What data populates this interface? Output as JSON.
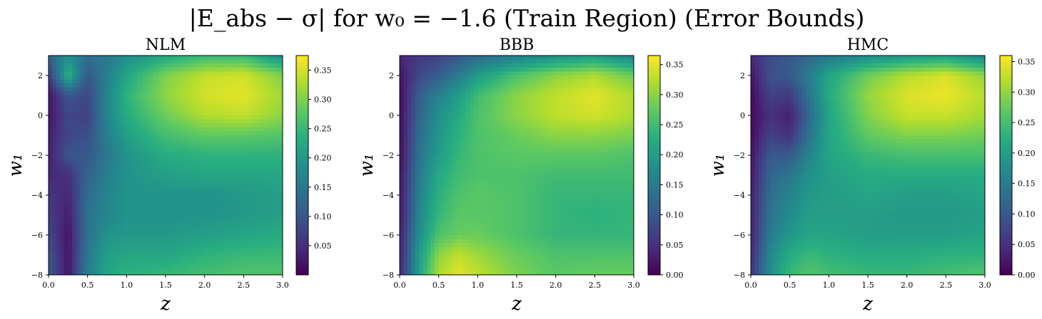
{
  "figure": {
    "suptitle": "|E_abs − σ| for w₀ = −1.6 (Train Region) (Error Bounds)"
  },
  "colormap": [
    "#440154",
    "#472d7b",
    "#3b528b",
    "#2c728e",
    "#21918c",
    "#28ae80",
    "#5ec962",
    "#addc30",
    "#fde725"
  ],
  "chart_data": [
    {
      "type": "heatmap",
      "title": "NLM",
      "xlabel": "z",
      "ylabel": "w₁",
      "xlim": [
        0.0,
        3.0
      ],
      "ylim": [
        -8,
        3
      ],
      "xticks": [
        "0.0",
        "0.5",
        "1.0",
        "1.5",
        "2.0",
        "2.5",
        "3.0"
      ],
      "yticks": [
        "2",
        "0",
        "−2",
        "−4",
        "−6",
        "−8"
      ],
      "colorbar": {
        "range": [
          0.0,
          0.375
        ],
        "ticks": [
          "0.05",
          "0.10",
          "0.15",
          "0.20",
          "0.25",
          "0.30",
          "0.35"
        ]
      },
      "x": [
        0.0,
        0.25,
        0.5,
        0.75,
        1.0,
        1.5,
        2.0,
        2.5,
        3.0
      ],
      "y": [
        3,
        2,
        1,
        0,
        -1,
        -2,
        -3,
        -4,
        -5,
        -6,
        -7,
        -8
      ],
      "values": [
        [
          0.12,
          0.18,
          0.14,
          0.15,
          0.18,
          0.22,
          0.25,
          0.25,
          0.18
        ],
        [
          0.06,
          0.24,
          0.1,
          0.16,
          0.22,
          0.3,
          0.34,
          0.35,
          0.3
        ],
        [
          0.02,
          0.1,
          0.08,
          0.17,
          0.24,
          0.31,
          0.35,
          0.36,
          0.32
        ],
        [
          0.02,
          0.08,
          0.07,
          0.17,
          0.23,
          0.29,
          0.33,
          0.34,
          0.31
        ],
        [
          0.03,
          0.08,
          0.09,
          0.16,
          0.21,
          0.26,
          0.28,
          0.28,
          0.27
        ],
        [
          0.03,
          0.1,
          0.1,
          0.15,
          0.19,
          0.23,
          0.24,
          0.24,
          0.24
        ],
        [
          0.04,
          0.05,
          0.12,
          0.16,
          0.19,
          0.21,
          0.22,
          0.22,
          0.22
        ],
        [
          0.06,
          0.04,
          0.13,
          0.17,
          0.19,
          0.19,
          0.19,
          0.2,
          0.21
        ],
        [
          0.07,
          0.03,
          0.14,
          0.17,
          0.19,
          0.19,
          0.19,
          0.2,
          0.21
        ],
        [
          0.08,
          0.02,
          0.14,
          0.19,
          0.2,
          0.2,
          0.21,
          0.22,
          0.23
        ],
        [
          0.1,
          0.02,
          0.15,
          0.21,
          0.22,
          0.22,
          0.24,
          0.25,
          0.25
        ],
        [
          0.11,
          0.02,
          0.16,
          0.22,
          0.24,
          0.25,
          0.26,
          0.27,
          0.27
        ]
      ]
    },
    {
      "type": "heatmap",
      "title": "BBB",
      "xlabel": "z",
      "ylabel": "w₁",
      "xlim": [
        0.0,
        3.0
      ],
      "ylim": [
        -8,
        3
      ],
      "xticks": [
        "0.0",
        "0.5",
        "1.0",
        "1.5",
        "2.0",
        "2.5",
        "3.0"
      ],
      "yticks": [
        "2",
        "0",
        "−2",
        "−4",
        "−6",
        "−8"
      ],
      "colorbar": {
        "range": [
          0.0,
          0.365
        ],
        "ticks": [
          "0.00",
          "0.05",
          "0.10",
          "0.15",
          "0.20",
          "0.25",
          "0.30",
          "0.35"
        ]
      },
      "x": [
        0.0,
        0.25,
        0.5,
        0.75,
        1.0,
        1.5,
        2.0,
        2.5,
        3.0
      ],
      "y": [
        3,
        2,
        1,
        0,
        -1,
        -2,
        -3,
        -4,
        -5,
        -6,
        -7,
        -8
      ],
      "values": [
        [
          0.04,
          0.06,
          0.07,
          0.1,
          0.12,
          0.15,
          0.18,
          0.2,
          0.16
        ],
        [
          0.02,
          0.08,
          0.11,
          0.15,
          0.2,
          0.26,
          0.3,
          0.32,
          0.28
        ],
        [
          0.01,
          0.11,
          0.16,
          0.2,
          0.25,
          0.3,
          0.33,
          0.35,
          0.32
        ],
        [
          0.01,
          0.12,
          0.18,
          0.22,
          0.26,
          0.3,
          0.33,
          0.34,
          0.32
        ],
        [
          0.01,
          0.13,
          0.19,
          0.23,
          0.26,
          0.28,
          0.3,
          0.3,
          0.29
        ],
        [
          0.01,
          0.14,
          0.2,
          0.24,
          0.26,
          0.27,
          0.27,
          0.27,
          0.26
        ],
        [
          0.02,
          0.15,
          0.22,
          0.25,
          0.26,
          0.26,
          0.25,
          0.25,
          0.25
        ],
        [
          0.02,
          0.16,
          0.23,
          0.26,
          0.27,
          0.26,
          0.24,
          0.24,
          0.24
        ],
        [
          0.02,
          0.17,
          0.24,
          0.27,
          0.27,
          0.26,
          0.24,
          0.23,
          0.24
        ],
        [
          0.03,
          0.18,
          0.26,
          0.28,
          0.28,
          0.26,
          0.24,
          0.24,
          0.24
        ],
        [
          0.03,
          0.2,
          0.3,
          0.33,
          0.31,
          0.28,
          0.26,
          0.26,
          0.26
        ],
        [
          0.04,
          0.21,
          0.32,
          0.35,
          0.33,
          0.29,
          0.27,
          0.28,
          0.28
        ]
      ]
    },
    {
      "type": "heatmap",
      "title": "HMC",
      "xlabel": "z",
      "ylabel": "w₁",
      "xlim": [
        0.0,
        3.0
      ],
      "ylim": [
        -8,
        3
      ],
      "xticks": [
        "0.0",
        "0.5",
        "1.0",
        "1.5",
        "2.0",
        "2.5",
        "3.0"
      ],
      "yticks": [
        "2",
        "0",
        "−2",
        "−4",
        "−6",
        "−8"
      ],
      "colorbar": {
        "range": [
          0.0,
          0.36
        ],
        "ticks": [
          "0.00",
          "0.05",
          "0.10",
          "0.15",
          "0.20",
          "0.25",
          "0.30",
          "0.35"
        ]
      },
      "x": [
        0.0,
        0.25,
        0.5,
        0.75,
        1.0,
        1.5,
        2.0,
        2.5,
        3.0
      ],
      "y": [
        3,
        2,
        1,
        0,
        -1,
        -2,
        -3,
        -4,
        -5,
        -6,
        -7,
        -8
      ],
      "values": [
        [
          0.04,
          0.08,
          0.1,
          0.12,
          0.14,
          0.17,
          0.19,
          0.2,
          0.16
        ],
        [
          0.02,
          0.09,
          0.1,
          0.15,
          0.21,
          0.28,
          0.32,
          0.34,
          0.3
        ],
        [
          0.01,
          0.07,
          0.06,
          0.14,
          0.22,
          0.3,
          0.34,
          0.35,
          0.32
        ],
        [
          0.01,
          0.05,
          0.03,
          0.12,
          0.21,
          0.29,
          0.33,
          0.33,
          0.31
        ],
        [
          0.01,
          0.07,
          0.05,
          0.14,
          0.21,
          0.27,
          0.29,
          0.29,
          0.28
        ],
        [
          0.02,
          0.1,
          0.1,
          0.16,
          0.21,
          0.24,
          0.25,
          0.25,
          0.25
        ],
        [
          0.02,
          0.12,
          0.14,
          0.18,
          0.2,
          0.22,
          0.22,
          0.22,
          0.22
        ],
        [
          0.03,
          0.13,
          0.16,
          0.19,
          0.2,
          0.21,
          0.2,
          0.2,
          0.21
        ],
        [
          0.03,
          0.14,
          0.17,
          0.2,
          0.2,
          0.2,
          0.19,
          0.19,
          0.2
        ],
        [
          0.03,
          0.15,
          0.19,
          0.21,
          0.21,
          0.2,
          0.2,
          0.2,
          0.21
        ],
        [
          0.04,
          0.17,
          0.22,
          0.24,
          0.23,
          0.22,
          0.22,
          0.23,
          0.23
        ],
        [
          0.05,
          0.18,
          0.24,
          0.26,
          0.25,
          0.24,
          0.24,
          0.25,
          0.26
        ]
      ]
    }
  ]
}
